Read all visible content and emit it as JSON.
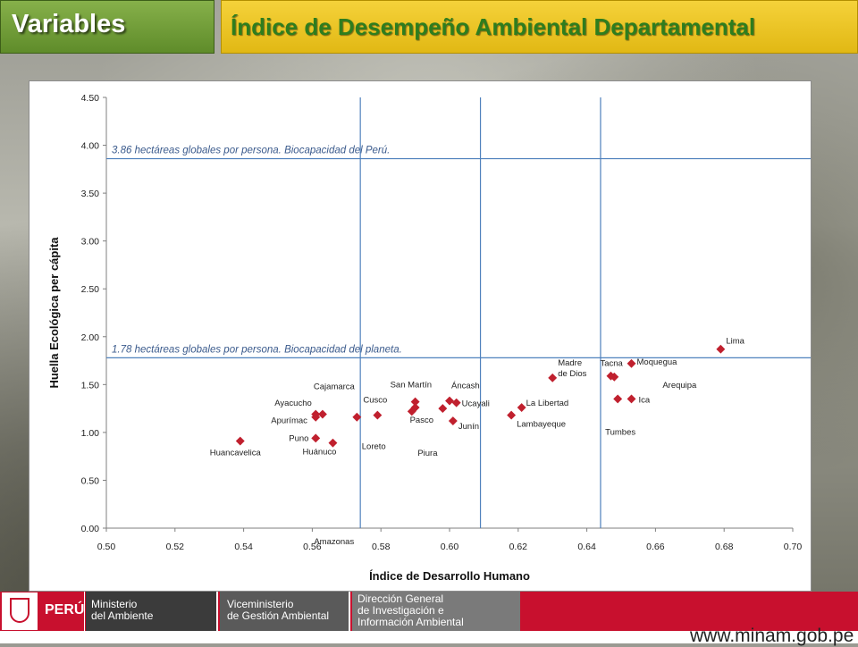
{
  "header": {
    "tab_label": "Variables",
    "title": "Índice de Desempeño Ambiental Departamental"
  },
  "footer": {
    "country": "PERÚ",
    "ministry_line1": "Ministerio",
    "ministry_line2": "del Ambiente",
    "vice_line1": "Viceministerio",
    "vice_line2": "de Gestión Ambiental",
    "dir_line1": "Dirección General",
    "dir_line2": "de Investigación e",
    "dir_line3": "Información Ambiental",
    "url": "www.minam.gob.pe"
  },
  "colors": {
    "marker": "#c0202e",
    "reference_line": "#4f81bd",
    "annotation_text": "#3a5a8c"
  },
  "chart_data": {
    "type": "scatter",
    "title": "",
    "xlabel": "Índice de Desarrollo Humano",
    "ylabel": "Huella Ecológica per cápita",
    "xlim": [
      0.5,
      0.7
    ],
    "ylim": [
      0.0,
      4.5
    ],
    "xticks": [
      "0.50",
      "0.52",
      "0.54",
      "0.56",
      "0.58",
      "0.60",
      "0.62",
      "0.64",
      "0.66",
      "0.68",
      "0.70"
    ],
    "yticks": [
      "0.00",
      "0.50",
      "1.00",
      "1.50",
      "2.00",
      "2.50",
      "3.00",
      "3.50",
      "4.00",
      "4.50"
    ],
    "grid": false,
    "horizontal_lines": [
      {
        "y": 3.86,
        "label": "3.86 hectáreas globales por persona. Biocapacidad del Perú."
      },
      {
        "y": 1.78,
        "label": "1.78 hectáreas globales por persona. Biocapacidad del planeta."
      }
    ],
    "vertical_lines": [
      {
        "x": 0.574
      },
      {
        "x": 0.609
      },
      {
        "x": 0.644
      }
    ],
    "points": [
      {
        "name": "Huancavelica",
        "x": 0.539,
        "y": 0.91
      },
      {
        "name": "Ayacucho",
        "x": 0.561,
        "y": 1.16
      },
      {
        "name": "Apurímac",
        "x": 0.561,
        "y": 1.19
      },
      {
        "name": "Cajamarca",
        "x": 0.563,
        "y": 1.19
      },
      {
        "name": "Puno",
        "x": 0.561,
        "y": 0.94
      },
      {
        "name": "Huánuco",
        "x": 0.566,
        "y": 0.89
      },
      {
        "name": "Amazonas",
        "x": 0.573,
        "y": 1.16
      },
      {
        "name": "Cusco",
        "x": 0.579,
        "y": 1.18
      },
      {
        "name": "Loreto",
        "x": 0.589,
        "y": 1.22
      },
      {
        "name": "San Martín",
        "x": 0.59,
        "y": 1.32
      },
      {
        "name": "Pasco",
        "x": 0.59,
        "y": 1.26
      },
      {
        "name": "Piura",
        "x": 0.598,
        "y": 1.25
      },
      {
        "name": "Áncash",
        "x": 0.6,
        "y": 1.33
      },
      {
        "name": "Ucayali",
        "x": 0.602,
        "y": 1.31
      },
      {
        "name": "Junín",
        "x": 0.601,
        "y": 1.12
      },
      {
        "name": "Lambayeque",
        "x": 0.618,
        "y": 1.18
      },
      {
        "name": "La Libertad",
        "x": 0.621,
        "y": 1.26
      },
      {
        "name": "Madre de Dios",
        "x": 0.63,
        "y": 1.57
      },
      {
        "name": "Tacna",
        "x": 0.647,
        "y": 1.59
      },
      {
        "name": "Arequipa",
        "x": 0.648,
        "y": 1.58
      },
      {
        "name": "Moquegua",
        "x": 0.653,
        "y": 1.72
      },
      {
        "name": "Tumbes",
        "x": 0.649,
        "y": 1.35
      },
      {
        "name": "Ica",
        "x": 0.653,
        "y": 1.35
      },
      {
        "name": "Lima",
        "x": 0.679,
        "y": 1.87
      }
    ]
  }
}
